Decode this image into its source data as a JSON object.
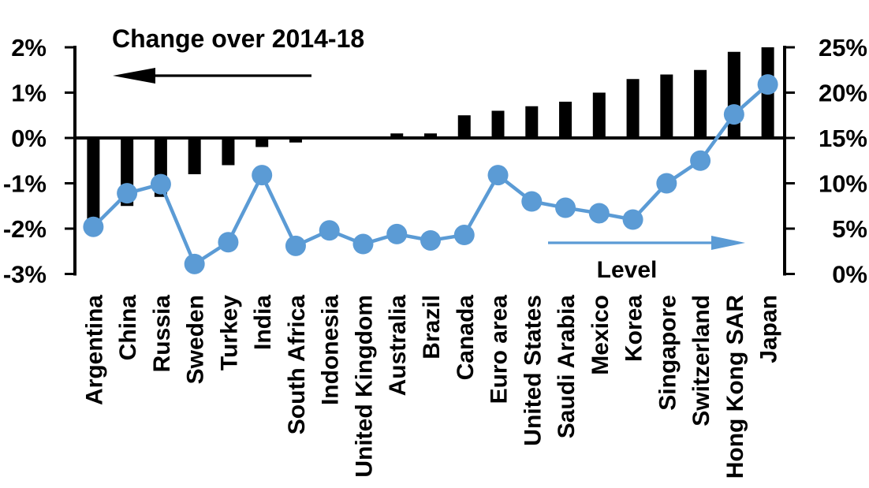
{
  "chart_data": {
    "type": "combo",
    "title": "",
    "categories": [
      "Argentina",
      "China",
      "Russia",
      "Sweden",
      "Turkey",
      "India",
      "South Africa",
      "Indonesia",
      "United Kingdom",
      "Australia",
      "Brazil",
      "Canada",
      "Euro area",
      "United States",
      "Saudi Arabia",
      "Mexico",
      "Korea",
      "Singapore",
      "Switzerland",
      "Hong Kong SAR",
      "Japan"
    ],
    "series": [
      {
        "name": "Change over 2014-18",
        "type": "bar",
        "axis": "left",
        "values": [
          -1.8,
          -1.5,
          -1.3,
          -0.8,
          -0.6,
          -0.2,
          -0.1,
          0.0,
          0.0,
          0.1,
          0.1,
          0.5,
          0.6,
          0.7,
          0.8,
          1.0,
          1.3,
          1.4,
          1.5,
          1.9,
          2.0
        ]
      },
      {
        "name": "Level",
        "type": "line",
        "axis": "right",
        "values": [
          5.2,
          8.9,
          9.9,
          1.1,
          3.5,
          10.9,
          3.1,
          4.8,
          3.3,
          4.4,
          3.7,
          4.3,
          10.9,
          8.0,
          7.3,
          6.7,
          6.0,
          10.0,
          12.5,
          17.6,
          20.9
        ]
      }
    ],
    "left_axis": {
      "min": -3,
      "max": 2,
      "tick_labels": [
        "2%",
        "1%",
        "0%",
        "-1%",
        "-2%",
        "-3%"
      ],
      "tick_values": [
        2,
        1,
        0,
        -1,
        -2,
        -3
      ]
    },
    "right_axis": {
      "min": 0,
      "max": 25,
      "tick_labels": [
        "25%",
        "20%",
        "15%",
        "10%",
        "5%",
        "0%"
      ],
      "tick_values": [
        25,
        20,
        15,
        10,
        5,
        0
      ]
    },
    "annotations": {
      "bar_label": "Change over 2014-18",
      "line_label": "Level",
      "bar_arrow_direction": "left",
      "line_arrow_direction": "right"
    },
    "legend": "none",
    "grid": "zero-line-only",
    "colors": {
      "bar": "#000000",
      "line": "#5B9BD5",
      "axis": "#000000",
      "text": "#000000",
      "background": "#FFFFFF"
    }
  }
}
